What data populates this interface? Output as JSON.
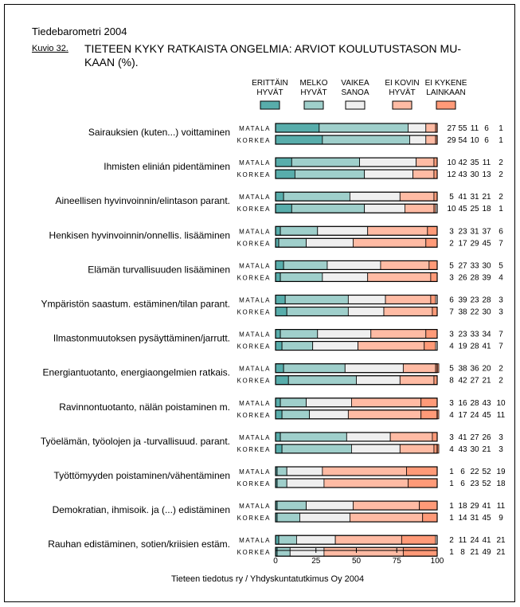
{
  "header": {
    "source": "Tiedebarometri 2004",
    "figure_no": "Kuvio 32.",
    "title_line1": "TIETEEN KYKY RATKAISTA ONGELMIA: ARVIOT KOULUTUSTASON MU-",
    "title_line2": "KAAN (%)."
  },
  "footer": "Tieteen tiedotus ry / Yhdyskuntatutkimus Oy 2004",
  "chart_data": {
    "type": "bar",
    "stacked": true,
    "orientation": "horizontal",
    "xlim": [
      0,
      100
    ],
    "xticks": [
      "0",
      "25",
      "50",
      "75",
      "100"
    ],
    "legend_placement": "top",
    "series": [
      {
        "name": "ERITTÄIN HYVÄT",
        "lines": [
          "ERITTÄIN",
          "HYVÄT"
        ],
        "color": "#58adab"
      },
      {
        "name": "MELKO HYVÄT",
        "lines": [
          "MELKO",
          "HYVÄT"
        ],
        "color": "#9fcfcb"
      },
      {
        "name": "VAIKEA SANOA",
        "lines": [
          "VAIKEA",
          "SANOA"
        ],
        "color": "#efefef"
      },
      {
        "name": "EI KOVIN HYVÄT",
        "lines": [
          "EI KOVIN",
          "HYVÄT"
        ],
        "color": "#ffbba4"
      },
      {
        "name": "EI KYKENE LAINKAAN",
        "lines": [
          "EI KYKENE",
          "LAINKAAN"
        ],
        "color": "#ff9a78"
      }
    ],
    "group_labels": [
      "MATALA",
      "KORKEA"
    ],
    "categories": [
      {
        "label": "Sairauksien (kuten...) voittaminen",
        "matala": [
          27,
          55,
          11,
          6,
          1
        ],
        "korkea": [
          29,
          54,
          10,
          6,
          1
        ]
      },
      {
        "label": "Ihmisten elinián pidentäminen",
        "matala": [
          10,
          42,
          35,
          11,
          2
        ],
        "korkea": [
          12,
          43,
          30,
          13,
          2
        ]
      },
      {
        "label": "Aineellisen hyvinvoinnin/elintason parant.",
        "matala": [
          5,
          41,
          31,
          21,
          2
        ],
        "korkea": [
          10,
          45,
          25,
          18,
          1
        ]
      },
      {
        "label": "Henkisen hyvinvoinnin/onnellis. lisääminen",
        "matala": [
          3,
          23,
          31,
          37,
          6
        ],
        "korkea": [
          2,
          17,
          29,
          45,
          7
        ]
      },
      {
        "label": "Elämän turvallisuuden lisääminen",
        "matala": [
          5,
          27,
          33,
          30,
          5
        ],
        "korkea": [
          3,
          26,
          28,
          39,
          4
        ]
      },
      {
        "label": "Ympäristön saastum. estäminen/tilan parant.",
        "matala": [
          6,
          39,
          23,
          28,
          3
        ],
        "korkea": [
          7,
          38,
          22,
          30,
          3
        ]
      },
      {
        "label": "Ilmastonmuutoksen pysäyttäminen/jarrutt.",
        "matala": [
          3,
          23,
          33,
          34,
          7
        ],
        "korkea": [
          4,
          19,
          28,
          41,
          7
        ]
      },
      {
        "label": "Energiantuotanto, energiaongelmien ratkais.",
        "matala": [
          5,
          38,
          36,
          20,
          2
        ],
        "korkea": [
          8,
          42,
          27,
          21,
          2
        ]
      },
      {
        "label": "Ravinnontuotanto, nälän poistaminen m.",
        "matala": [
          3,
          16,
          28,
          43,
          10
        ],
        "korkea": [
          4,
          17,
          24,
          45,
          11
        ]
      },
      {
        "label": "Työelämän, työolojen ja -turvallisuud. parant.",
        "matala": [
          3,
          41,
          27,
          26,
          3
        ],
        "korkea": [
          4,
          43,
          30,
          21,
          3
        ]
      },
      {
        "label": "Työttömyyden poistaminen/vähentäminen",
        "matala": [
          1,
          6,
          22,
          52,
          19
        ],
        "korkea": [
          1,
          6,
          23,
          52,
          18
        ]
      },
      {
        "label": "Demokratian, ihmisoik. ja (...) edistäminen",
        "matala": [
          1,
          18,
          29,
          41,
          11
        ],
        "korkea": [
          1,
          14,
          31,
          45,
          9
        ]
      },
      {
        "label": "Rauhan edistäminen, sotien/kriisien estäm.",
        "matala": [
          2,
          11,
          24,
          41,
          21
        ],
        "korkea": [
          1,
          8,
          21,
          49,
          21
        ]
      }
    ]
  }
}
